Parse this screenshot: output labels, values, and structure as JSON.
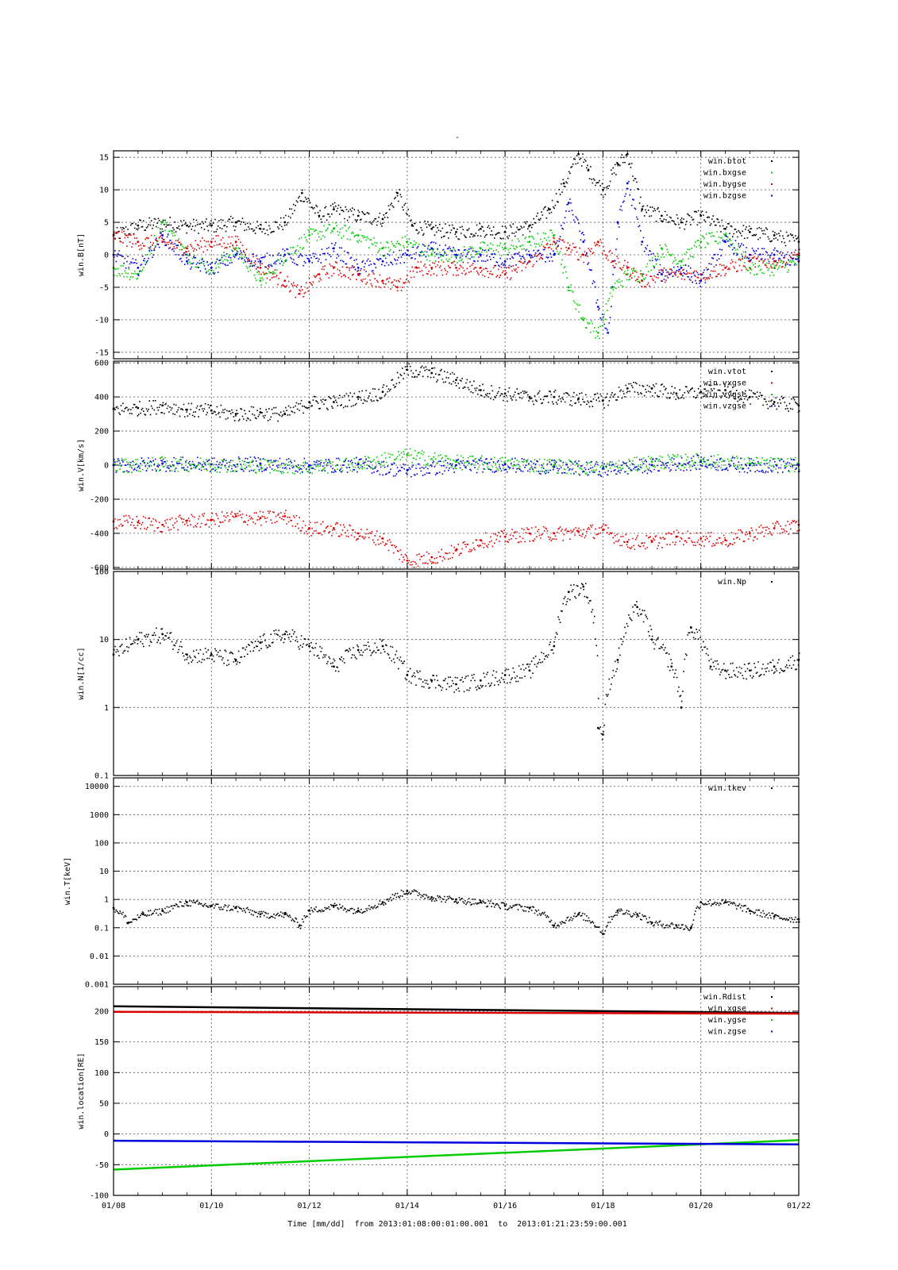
{
  "title": "-",
  "colors": {
    "black": "#000000",
    "red": "#dd0000",
    "green": "#00cc00",
    "blue": "#0000dd",
    "grid": "#555555"
  },
  "xaxis": {
    "label": "Time [mm/dd]  from 2013:01:08:00:01:00.001  to  2013:01:21:23:59:00.001",
    "ticks": [
      "01/08",
      "01/10",
      "01/12",
      "01/14",
      "01/16",
      "01/18",
      "01/20",
      "01/22"
    ],
    "range_days": [
      8,
      22
    ]
  },
  "chart_data": [
    {
      "type": "scatter",
      "ylabel": "win.B[nT]",
      "ylim": [
        -16,
        16
      ],
      "yscale": "linear",
      "yticks": [
        -15,
        -10,
        -5,
        0,
        5,
        10,
        15
      ],
      "ytick_labels": [
        "-15",
        "-10",
        "-5",
        "0",
        "5",
        "10",
        "15"
      ],
      "grid": true,
      "legend_position": "top-right",
      "series": [
        {
          "name": "win.btot",
          "color": "#000000",
          "x": [
            8,
            8.5,
            9,
            9.5,
            10,
            10.5,
            11,
            11.5,
            11.85,
            12.2,
            12.5,
            13,
            13.5,
            13.8,
            14.1,
            14.5,
            15,
            15.5,
            16,
            16.5,
            16.9,
            17.2,
            17.5,
            17.7,
            18.0,
            18.3,
            18.5,
            18.8,
            19.2,
            19.6,
            20.0,
            20.5,
            21,
            21.5,
            22
          ],
          "y": [
            3,
            4.5,
            5,
            4.5,
            4.5,
            5,
            4,
            5,
            9.5,
            6,
            7,
            6,
            5.5,
            9.5,
            4.5,
            4,
            3.5,
            4,
            3.5,
            4.5,
            7,
            11,
            15.5,
            13,
            10,
            14,
            15.5,
            7,
            6,
            5,
            6,
            4,
            3.5,
            3,
            2
          ]
        },
        {
          "name": "win.bxgse",
          "color": "#00cc00",
          "x": [
            8,
            8.5,
            9,
            9.5,
            10,
            10.5,
            11,
            11.5,
            12,
            12.5,
            13,
            13.5,
            14,
            14.5,
            15,
            15.5,
            16,
            16.5,
            17,
            17.3,
            17.6,
            17.9,
            18.2,
            18.5,
            18.8,
            19.2,
            19.6,
            20,
            20.5,
            21,
            21.5,
            22
          ],
          "y": [
            -2,
            -3,
            5,
            0,
            -2,
            1,
            -4,
            0,
            3,
            4,
            3,
            1,
            2,
            0,
            0,
            1,
            1,
            2,
            3,
            -5,
            -10,
            -12,
            -5,
            -3,
            -3,
            1,
            -1,
            2,
            3,
            -2,
            -2,
            -1
          ]
        },
        {
          "name": "win.bygse",
          "color": "#dd0000",
          "x": [
            8,
            8.5,
            9,
            9.5,
            10,
            10.5,
            11,
            11.5,
            11.8,
            12.2,
            12.5,
            13,
            13.5,
            13.8,
            14.2,
            14.5,
            15,
            15.5,
            16,
            16.5,
            17,
            17.3,
            17.6,
            17.9,
            18.2,
            18.5,
            18.8,
            19.2,
            19.6,
            20,
            20.5,
            21,
            21.5,
            22
          ],
          "y": [
            3,
            2,
            2,
            1,
            2,
            2,
            -2,
            -4,
            -6,
            -3,
            -2,
            -3,
            -4,
            -5,
            -2,
            -2,
            -2,
            -2,
            -3,
            -1,
            2,
            1,
            0,
            2,
            -1,
            -2,
            -4,
            -3,
            -3,
            -3,
            -2,
            -1,
            -1,
            0
          ]
        },
        {
          "name": "win.bzgse",
          "color": "#0000dd",
          "x": [
            8,
            8.5,
            9,
            9.5,
            10,
            10.5,
            11,
            11.5,
            12,
            12.5,
            13,
            13.5,
            14,
            14.5,
            15,
            15.5,
            16,
            16.5,
            17,
            17.3,
            17.6,
            17.9,
            18.1,
            18.3,
            18.5,
            18.8,
            19.2,
            19.6,
            20,
            20.5,
            21,
            21.5,
            22
          ],
          "y": [
            0,
            -2,
            3,
            -1,
            -2,
            0,
            -1,
            0,
            -1,
            1,
            -2,
            -1,
            0,
            1,
            0,
            0,
            -1,
            0,
            0,
            8,
            2,
            -8,
            -12,
            5,
            11,
            2,
            -3,
            -2,
            -4,
            2,
            0,
            0,
            -1
          ]
        }
      ]
    },
    {
      "type": "scatter",
      "ylabel": "win.V[km/s]",
      "ylim": [
        -610,
        610
      ],
      "yscale": "linear",
      "yticks": [
        -600,
        -400,
        -200,
        0,
        200,
        400,
        600
      ],
      "ytick_labels": [
        "-600",
        "-400",
        "-200",
        "0",
        "200",
        "400",
        "600"
      ],
      "grid": true,
      "legend_position": "top-right",
      "series": [
        {
          "name": "win.vtot",
          "color": "#000000",
          "x": [
            8,
            8.5,
            9,
            9.5,
            10,
            10.5,
            11,
            11.5,
            12,
            12.5,
            13,
            13.5,
            14,
            14.5,
            15,
            15.5,
            16,
            16.5,
            17,
            17.5,
            18,
            18.5,
            19,
            19.5,
            20,
            20.5,
            21,
            21.5,
            22
          ],
          "y": [
            330,
            335,
            350,
            325,
            320,
            300,
            310,
            300,
            370,
            370,
            400,
            430,
            560,
            540,
            500,
            440,
            420,
            400,
            400,
            390,
            380,
            450,
            450,
            420,
            430,
            440,
            400,
            370,
            350
          ]
        },
        {
          "name": "win.vxgse",
          "color": "#dd0000",
          "x": [
            8,
            8.5,
            9,
            9.5,
            10,
            10.5,
            11,
            11.5,
            12,
            12.5,
            13,
            13.5,
            14,
            14.5,
            15,
            15.5,
            16,
            16.5,
            17,
            17.5,
            18,
            18.5,
            19,
            19.5,
            20,
            20.5,
            21,
            21.5,
            22
          ],
          "y": [
            -330,
            -335,
            -350,
            -325,
            -320,
            -300,
            -310,
            -300,
            -370,
            -370,
            -400,
            -430,
            -560,
            -540,
            -500,
            -440,
            -420,
            -400,
            -400,
            -390,
            -380,
            -450,
            -450,
            -420,
            -430,
            -440,
            -400,
            -370,
            -350
          ]
        },
        {
          "name": "win.vygse",
          "color": "#00cc00",
          "x": [
            8,
            9,
            10,
            11,
            12,
            13,
            14,
            15,
            16,
            17,
            18,
            19,
            20,
            21,
            22
          ],
          "y": [
            0,
            10,
            5,
            0,
            -10,
            10,
            60,
            20,
            10,
            0,
            -20,
            20,
            30,
            10,
            5
          ]
        },
        {
          "name": "win.vzgse",
          "color": "#0000dd",
          "x": [
            8,
            9,
            10,
            11,
            12,
            13,
            14,
            15,
            16,
            17,
            18,
            19,
            20,
            21,
            22
          ],
          "y": [
            0,
            10,
            5,
            10,
            0,
            5,
            -30,
            0,
            5,
            -10,
            -20,
            0,
            20,
            0,
            0
          ]
        }
      ]
    },
    {
      "type": "scatter",
      "ylabel": "win.N[1/cc]",
      "ylim": [
        0.1,
        100
      ],
      "yscale": "log",
      "yticks": [
        0.1,
        1,
        10,
        100
      ],
      "ytick_labels": [
        "0.1",
        "1",
        "10",
        "100"
      ],
      "grid": true,
      "legend_position": "top-right",
      "series": [
        {
          "name": "win.Np",
          "color": "#000000",
          "x": [
            8,
            8.5,
            9,
            9.5,
            10,
            10.5,
            11,
            11.5,
            12,
            12.5,
            13,
            13.5,
            14,
            14.5,
            15,
            15.5,
            16,
            16.5,
            17,
            17.3,
            17.6,
            17.9,
            18.0,
            18.3,
            18.7,
            19.0,
            19.4,
            19.6,
            19.8,
            20.2,
            20.5,
            21,
            21.5,
            22
          ],
          "y": [
            6,
            10,
            12,
            6,
            6,
            5,
            9,
            12,
            8,
            4,
            7,
            8,
            3,
            2.5,
            2.2,
            2.5,
            3,
            3.5,
            8,
            50,
            60,
            0.5,
            0.4,
            5,
            30,
            10,
            4,
            1,
            15,
            4,
            3.5,
            3.5,
            4,
            5
          ]
        }
      ]
    },
    {
      "type": "scatter",
      "ylabel": "win.T[keV]",
      "ylim": [
        0.001,
        20000
      ],
      "yscale": "log",
      "yticks": [
        0.001,
        0.01,
        0.1,
        1,
        10,
        100,
        1000,
        10000
      ],
      "ytick_labels": [
        "0.001",
        "0.01",
        "0.1",
        "1",
        "10",
        "100",
        "1000",
        "10000"
      ],
      "grid": true,
      "legend_position": "top-right",
      "series": [
        {
          "name": "win.tkev",
          "color": "#000000",
          "x": [
            8,
            8.3,
            8.6,
            9,
            9.5,
            10,
            10.5,
            11,
            11.5,
            11.8,
            12,
            12.5,
            13,
            13.5,
            14,
            14.5,
            15,
            15.5,
            16,
            16.5,
            17,
            17.5,
            18,
            18.3,
            18.7,
            19,
            19.5,
            19.8,
            20,
            20.5,
            21,
            21.5,
            22
          ],
          "y": [
            0.5,
            0.15,
            0.3,
            0.4,
            0.8,
            0.6,
            0.5,
            0.3,
            0.3,
            0.12,
            0.4,
            0.6,
            0.4,
            0.8,
            2,
            1.2,
            1,
            0.8,
            0.6,
            0.5,
            0.12,
            0.3,
            0.06,
            0.4,
            0.3,
            0.15,
            0.12,
            0.1,
            0.8,
            0.8,
            0.4,
            0.25,
            0.2
          ]
        }
      ]
    },
    {
      "type": "line",
      "ylabel": "win.location[RE]",
      "ylim": [
        -100,
        240
      ],
      "yscale": "linear",
      "yticks": [
        -100,
        -50,
        0,
        50,
        100,
        150,
        200
      ],
      "ytick_labels": [
        "-100",
        "-50",
        "0",
        "50",
        "100",
        "150",
        "200"
      ],
      "grid": true,
      "legend_position": "top-right",
      "series": [
        {
          "name": "win.Rdist",
          "color": "#000000",
          "x": [
            8,
            22
          ],
          "y": [
            208,
            197
          ]
        },
        {
          "name": "win.xgse",
          "color": "#dd0000",
          "x": [
            8,
            22
          ],
          "y": [
            199,
            196
          ]
        },
        {
          "name": "win.ygse",
          "color": "#00cc00",
          "x": [
            8,
            22
          ],
          "y": [
            -58,
            -10
          ]
        },
        {
          "name": "win.zgse",
          "color": "#0000dd",
          "x": [
            8,
            22
          ],
          "y": [
            -11,
            -17
          ]
        }
      ]
    }
  ]
}
